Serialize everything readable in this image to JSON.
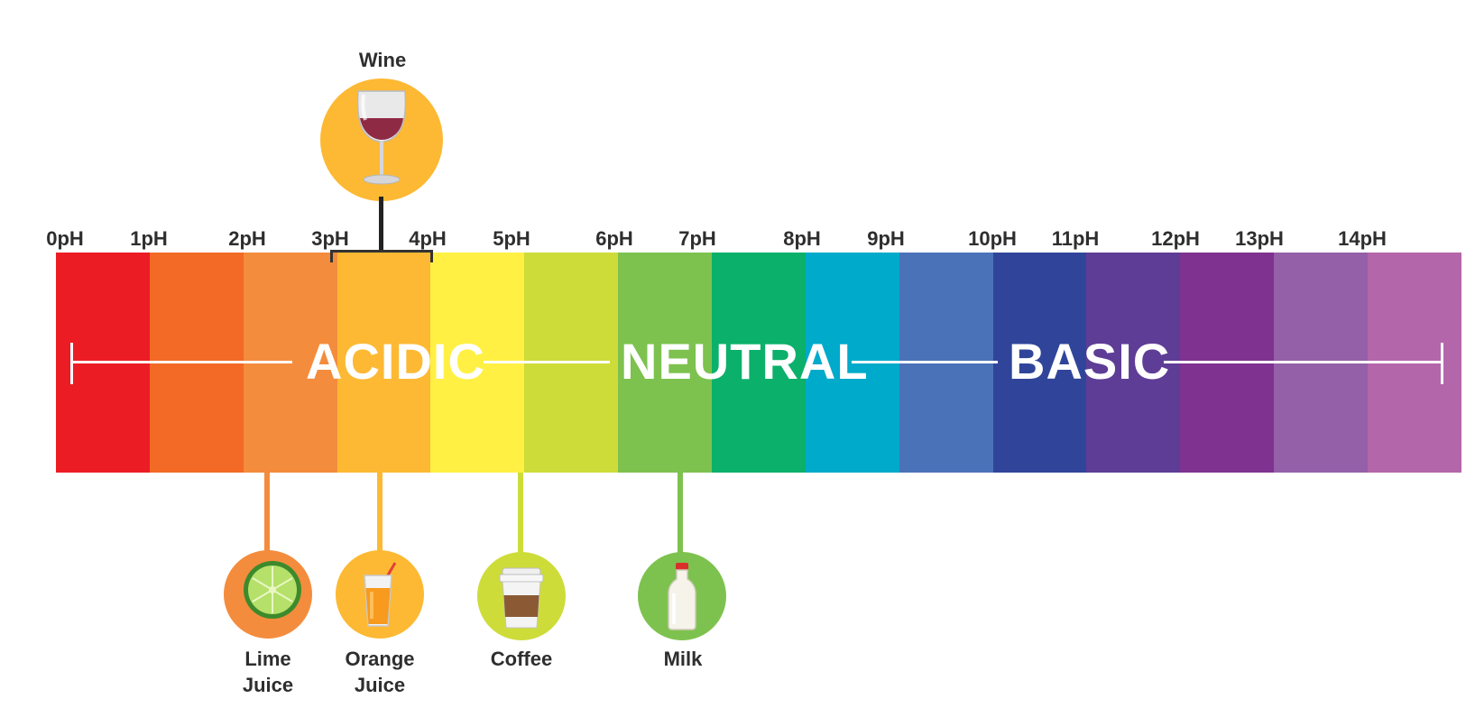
{
  "scale": {
    "ticks": [
      "0pH",
      "1pH",
      "2pH",
      "3pH",
      "4pH",
      "5pH",
      "6pH",
      "7pH",
      "8pH",
      "9pH",
      "10pH",
      "11pH",
      "12pH",
      "13pH",
      "14pH"
    ],
    "band_colors": [
      "#ec1c24",
      "#f26a25",
      "#f48c3d",
      "#fdb933",
      "#fff043",
      "#cddc39",
      "#7dc24e",
      "#0bb06b",
      "#00aacb",
      "#4a72b8",
      "#30459a",
      "#5e3d96",
      "#7f3290",
      "#9460a8",
      "#b466aa"
    ]
  },
  "regions": {
    "acidic": "ACIDIC",
    "neutral": "NEUTRAL",
    "basic": "BASIC"
  },
  "items": {
    "wine": {
      "label": "Wine",
      "ph_range": [
        3,
        4
      ],
      "color": "#fdb933",
      "icon": "wine-glass-icon"
    },
    "lime_juice": {
      "label_line1": "Lime",
      "label_line2": "Juice",
      "ph": 2,
      "color": "#f48c3d",
      "icon": "lime-slice-icon"
    },
    "orange_juice": {
      "label_line1": "Orange",
      "label_line2": "Juice",
      "ph": 3,
      "color": "#fdb933",
      "icon": "juice-glass-icon"
    },
    "coffee": {
      "label": "Coffee",
      "ph": 5,
      "color": "#cddc39",
      "icon": "coffee-cup-icon"
    },
    "milk": {
      "label": "Milk",
      "ph": 7,
      "color": "#7dc24e",
      "icon": "milk-bottle-icon"
    }
  }
}
